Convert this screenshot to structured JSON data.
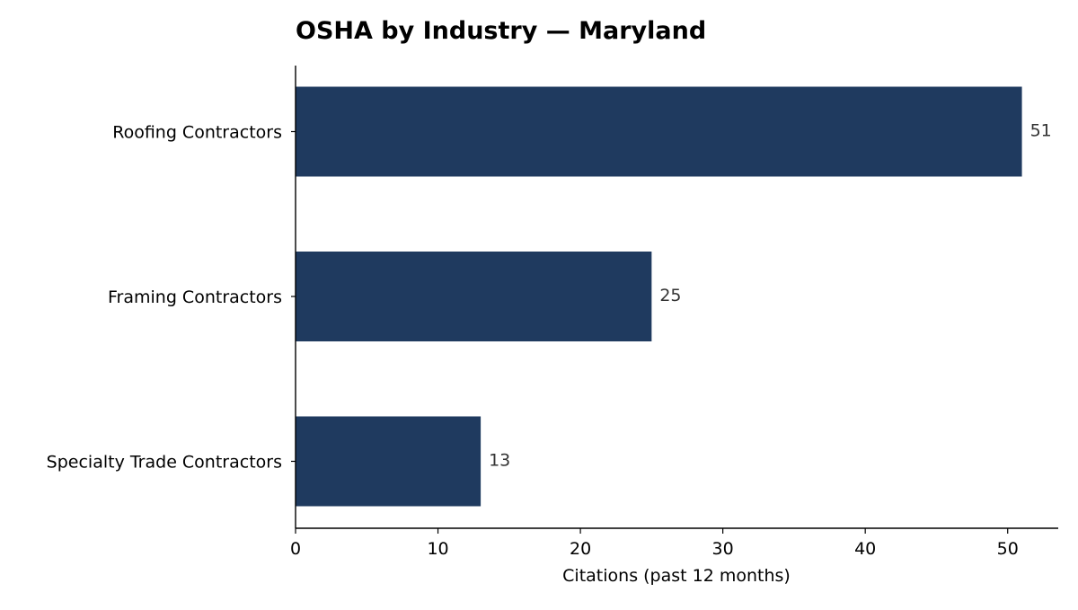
{
  "chart_data": {
    "type": "bar",
    "orientation": "horizontal",
    "title": "OSHA by Industry — Maryland",
    "xlabel": "Citations (past 12 months)",
    "ylabel": "",
    "categories": [
      "Roofing Contractors",
      "Framing Contractors",
      "Specialty Trade Contractors"
    ],
    "values": [
      51,
      25,
      13
    ],
    "data_labels": [
      "51",
      "25",
      "13"
    ],
    "xlim": [
      0,
      53.55
    ],
    "xticks": [
      0,
      10,
      20,
      30,
      40,
      50
    ],
    "xtick_labels": [
      "0",
      "10",
      "20",
      "30",
      "40",
      "50"
    ],
    "grid": false,
    "legend": "none",
    "bar_color": "#1f3a5f",
    "spines": [
      "left",
      "bottom"
    ]
  }
}
